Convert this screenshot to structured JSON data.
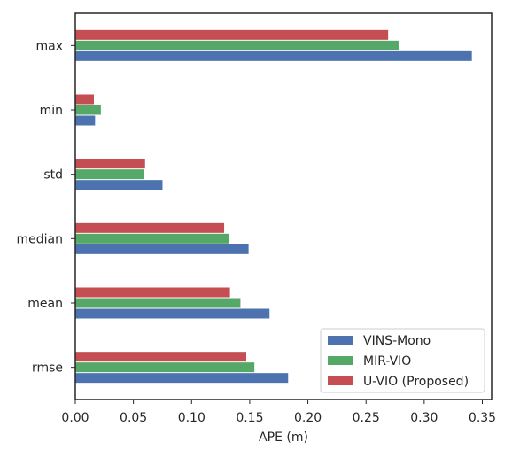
{
  "chart_data": {
    "type": "bar",
    "orientation": "horizontal",
    "categories": [
      "max",
      "min",
      "std",
      "median",
      "mean",
      "rmse"
    ],
    "series": [
      {
        "name": "VINS-Mono",
        "color": "#4c72b0",
        "values": [
          0.341,
          0.017,
          0.075,
          0.149,
          0.167,
          0.183
        ]
      },
      {
        "name": "MIR-VIO",
        "color": "#55a868",
        "values": [
          0.278,
          0.022,
          0.059,
          0.132,
          0.142,
          0.154
        ]
      },
      {
        "name": "U-VIO (Proposed)",
        "color": "#c44e52",
        "values": [
          0.269,
          0.016,
          0.06,
          0.128,
          0.133,
          0.147
        ]
      }
    ],
    "xlabel": "APE (m)",
    "ylabel": "",
    "xlim": [
      0,
      0.358
    ],
    "xticks": [
      "0.00",
      "0.05",
      "0.10",
      "0.15",
      "0.20",
      "0.25",
      "0.30",
      "0.35"
    ],
    "grid": false,
    "legend_position": "lower-right"
  }
}
